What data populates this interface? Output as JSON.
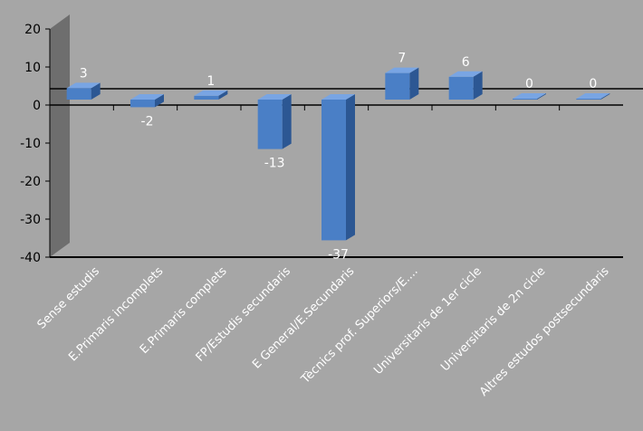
{
  "chart_data": {
    "type": "bar",
    "categories": [
      "Sense estudis",
      "E.Primaris incomplets",
      "E.Primaris complets",
      "FP/Estudis secundaris",
      "E General/E.Secundaris",
      "Tècnics prof. Superiors/E....",
      "Universitaris de 1er cicle",
      "Universitaris de 2n cicle",
      "Altres estudos postsecundaris"
    ],
    "values": [
      3,
      -2,
      1,
      -13,
      -37,
      7,
      6,
      0,
      0
    ],
    "data_labels": [
      "3",
      "-2",
      "1",
      "-13",
      "-37",
      "7",
      "6",
      "0",
      "0"
    ],
    "yticks": [
      20,
      10,
      0,
      -10,
      -20,
      -30,
      -40
    ],
    "ylim": [
      -40,
      20
    ],
    "reference_line": 4,
    "grid": false,
    "legend": "none",
    "three_d": true
  },
  "colors": {
    "background": "#a6a6a6",
    "bar_front": "#4a7fc6",
    "bar_side": "#2c5793",
    "bar_top": "#79a5e3",
    "wall": "#6e6e6e",
    "axis": "#000000",
    "label": "#ffffff"
  }
}
